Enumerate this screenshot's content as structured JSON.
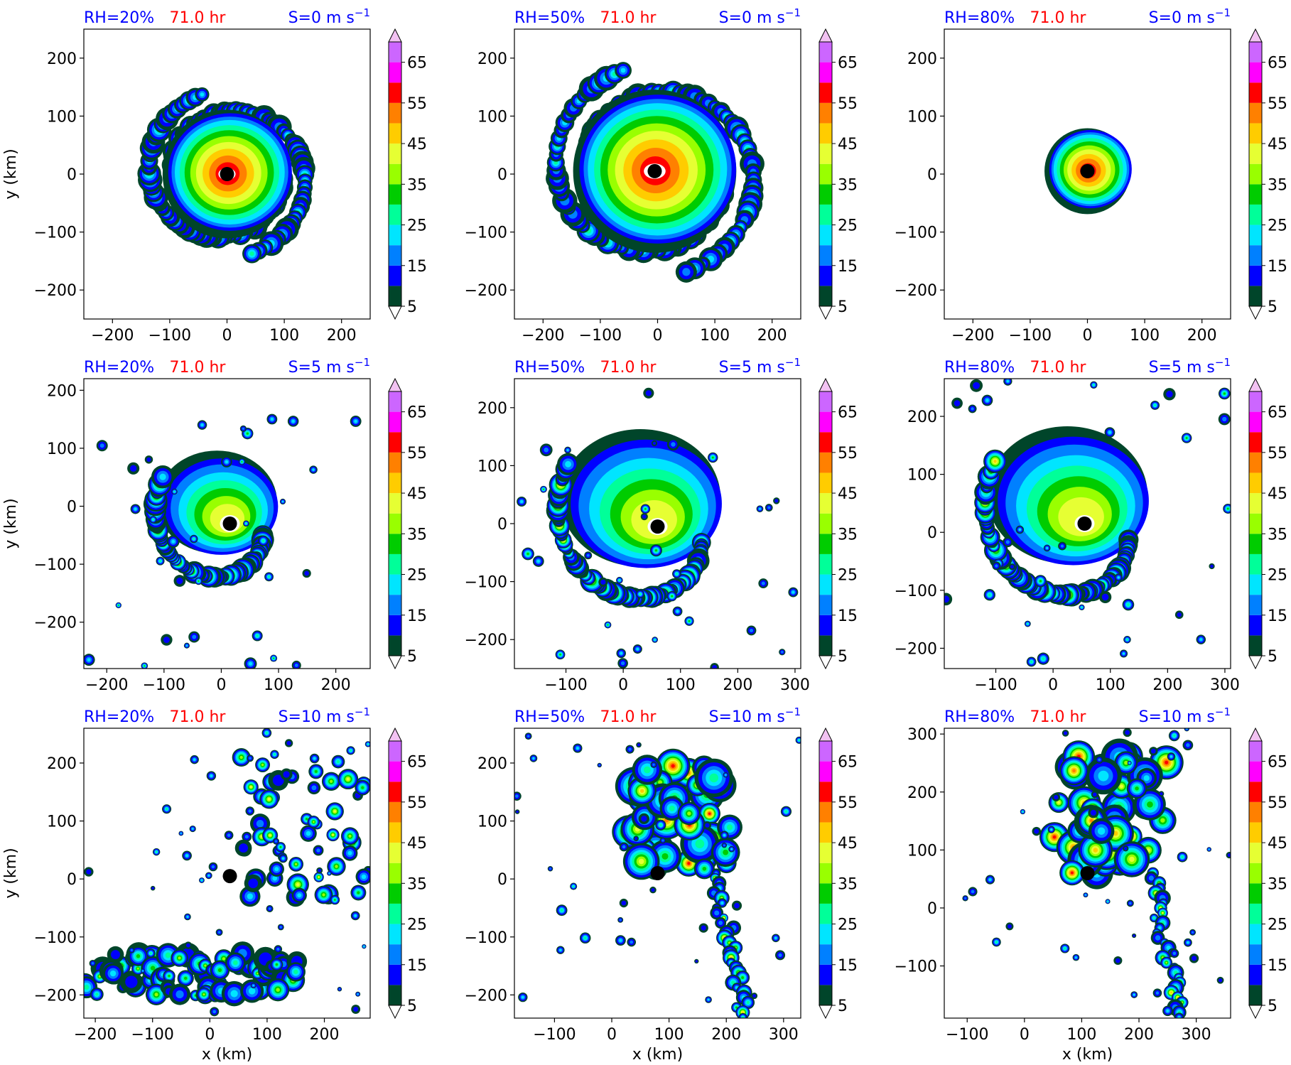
{
  "figure": {
    "time_label": "71.0 hr",
    "xlabel": "x (km)",
    "ylabel": "y (km)"
  },
  "colorbar": {
    "levels": [
      5,
      10,
      15,
      20,
      25,
      30,
      35,
      40,
      45,
      50,
      55,
      60,
      65,
      70
    ],
    "tick_labels": [
      "5",
      "15",
      "25",
      "35",
      "45",
      "55",
      "65"
    ],
    "colors": [
      "#00452a",
      "#0000ff",
      "#0080ff",
      "#00e5ff",
      "#00ff99",
      "#00cc00",
      "#99ff00",
      "#e6ff33",
      "#ffcc00",
      "#ff8000",
      "#ff0000",
      "#ff00ff",
      "#cc66ff",
      "#f2c2f2"
    ],
    "extend": "both"
  },
  "chart_data": [
    {
      "type": "heatmap",
      "rh": "RH=20%",
      "time": "71.0 hr",
      "shear": "S=0 m s",
      "shear_exp": "−1",
      "xlim": [
        -250,
        250
      ],
      "ylim": [
        -250,
        250
      ],
      "xticks": [
        -200,
        -100,
        0,
        100,
        200
      ],
      "yticks": [
        -200,
        -100,
        0,
        100,
        200
      ],
      "center": [
        0,
        0
      ],
      "pattern": "spiral",
      "radius": 150
    },
    {
      "type": "heatmap",
      "rh": "RH=50%",
      "time": "71.0 hr",
      "shear": "S=0 m s",
      "shear_exp": "−1",
      "xlim": [
        -250,
        250
      ],
      "ylim": [
        -250,
        250
      ],
      "xticks": [
        -200,
        -100,
        0,
        100,
        200
      ],
      "yticks": [
        -200,
        -100,
        0,
        100,
        200
      ],
      "center": [
        -5,
        5
      ],
      "pattern": "spiral",
      "radius": 190
    },
    {
      "type": "heatmap",
      "rh": "RH=80%",
      "time": "71.0 hr",
      "shear": "S=0 m s",
      "shear_exp": "−1",
      "xlim": [
        -250,
        250
      ],
      "ylim": [
        -250,
        250
      ],
      "xticks": [
        -200,
        -100,
        0,
        100,
        200
      ],
      "yticks": [
        -200,
        -100,
        0,
        100,
        200
      ],
      "center": [
        0,
        5
      ],
      "pattern": "compact",
      "radius": 100
    },
    {
      "type": "heatmap",
      "rh": "RH=20%",
      "time": "71.0 hr",
      "shear": "S=5 m s",
      "shear_exp": "−1",
      "xlim": [
        -240,
        260
      ],
      "ylim": [
        -280,
        220
      ],
      "xticks": [
        -200,
        -100,
        0,
        100,
        200
      ],
      "yticks": [
        -200,
        -100,
        0,
        100,
        200
      ],
      "center": [
        15,
        -30
      ],
      "pattern": "sheared",
      "radius": 150
    },
    {
      "type": "heatmap",
      "rh": "RH=50%",
      "time": "71.0 hr",
      "shear": "S=5 m s",
      "shear_exp": "−1",
      "xlim": [
        -190,
        310
      ],
      "ylim": [
        -250,
        250
      ],
      "xticks": [
        -100,
        0,
        100,
        200,
        300
      ],
      "yticks": [
        -200,
        -100,
        0,
        100,
        200
      ],
      "center": [
        60,
        -5
      ],
      "pattern": "sheared",
      "radius": 200
    },
    {
      "type": "heatmap",
      "rh": "RH=80%",
      "time": "71.0 hr",
      "shear": "S=5 m s",
      "shear_exp": "−1",
      "xlim": [
        -190,
        310
      ],
      "ylim": [
        -235,
        265
      ],
      "xticks": [
        -100,
        0,
        100,
        200,
        300
      ],
      "yticks": [
        -200,
        -100,
        0,
        100,
        200
      ],
      "center": [
        55,
        15
      ],
      "pattern": "sheared",
      "radius": 200
    },
    {
      "type": "heatmap",
      "rh": "RH=20%",
      "time": "71.0 hr",
      "shear": "S=10 m s",
      "shear_exp": "−1",
      "xlim": [
        -220,
        280
      ],
      "ylim": [
        -240,
        260
      ],
      "xticks": [
        -200,
        -100,
        0,
        100,
        200
      ],
      "yticks": [
        -200,
        -100,
        0,
        100,
        200
      ],
      "center": [
        35,
        5
      ],
      "pattern": "scattered",
      "radius": 230
    },
    {
      "type": "heatmap",
      "rh": "RH=50%",
      "time": "71.0 hr",
      "shear": "S=10 m s",
      "shear_exp": "−1",
      "xlim": [
        -170,
        330
      ],
      "ylim": [
        -240,
        260
      ],
      "xticks": [
        -100,
        0,
        100,
        200,
        300
      ],
      "yticks": [
        -200,
        -100,
        0,
        100,
        200
      ],
      "center": [
        80,
        10
      ],
      "pattern": "plume",
      "radius": 200
    },
    {
      "type": "heatmap",
      "rh": "RH=80%",
      "time": "71.0 hr",
      "shear": "S=10 m s",
      "shear_exp": "−1",
      "xlim": [
        -140,
        360
      ],
      "ylim": [
        -190,
        310
      ],
      "xticks": [
        -100,
        0,
        100,
        200,
        300
      ],
      "yticks": [
        -100,
        0,
        100,
        200,
        300
      ],
      "center": [
        110,
        60
      ],
      "pattern": "plume",
      "radius": 220
    }
  ]
}
